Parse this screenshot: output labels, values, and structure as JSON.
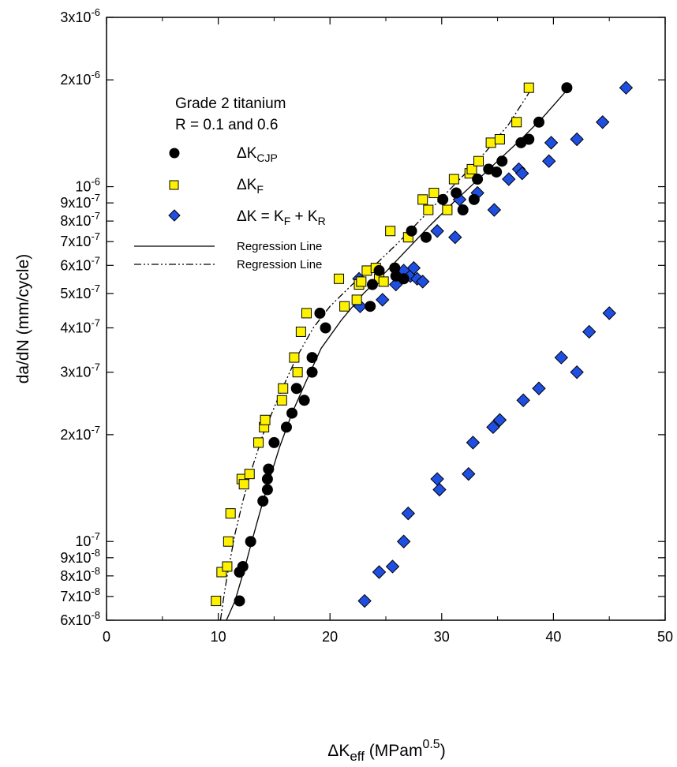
{
  "chart_data": {
    "type": "scatter",
    "xlabel": {
      "base": "ΔK",
      "sub": "eff",
      "rest": " (MPam",
      "sup": "0.5",
      "end": ")"
    },
    "ylabel": "da/dN  (mm/cycle)",
    "x_scale": "linear",
    "y_scale": "log",
    "xlim": [
      0,
      50
    ],
    "ylim": [
      6e-08,
      3e-06
    ],
    "x_ticks": [
      0,
      10,
      20,
      30,
      40,
      50
    ],
    "x_tick_labels": [
      "0",
      "10",
      "20",
      "30",
      "40",
      "50"
    ],
    "y_ticks": [
      {
        "value": 6e-08,
        "mant": "6x10",
        "exp": "-8"
      },
      {
        "value": 7e-08,
        "mant": "7x10",
        "exp": "-8"
      },
      {
        "value": 8e-08,
        "mant": "8x10",
        "exp": "-8"
      },
      {
        "value": 9e-08,
        "mant": "9x10",
        "exp": "-8"
      },
      {
        "value": 1e-07,
        "mant": "10",
        "exp": "-7"
      },
      {
        "value": 2e-07,
        "mant": "2x10",
        "exp": "-7"
      },
      {
        "value": 3e-07,
        "mant": "3x10",
        "exp": "-7"
      },
      {
        "value": 4e-07,
        "mant": "4x10",
        "exp": "-7"
      },
      {
        "value": 5e-07,
        "mant": "5x10",
        "exp": "-7"
      },
      {
        "value": 6e-07,
        "mant": "6x10",
        "exp": "-7"
      },
      {
        "value": 7e-07,
        "mant": "7x10",
        "exp": "-7"
      },
      {
        "value": 8e-07,
        "mant": "8x10",
        "exp": "-7"
      },
      {
        "value": 9e-07,
        "mant": "9x10",
        "exp": "-7"
      },
      {
        "value": 1e-06,
        "mant": "10",
        "exp": "-6"
      },
      {
        "value": 2e-06,
        "mant": "2x10",
        "exp": "-6"
      },
      {
        "value": 3e-06,
        "mant": "3x10",
        "exp": "-6"
      }
    ],
    "annotations": [
      "Grade 2 titanium",
      "R = 0.1 and 0.6"
    ],
    "legend_position": "top-left",
    "grid": false,
    "series": [
      {
        "name": {
          "base": "ΔK",
          "sub": "CJP"
        },
        "marker": "circle",
        "color": "#000000",
        "points": [
          [
            11.9,
            6.8e-08
          ],
          [
            11.9,
            8.2e-08
          ],
          [
            12.2,
            8.5e-08
          ],
          [
            12.9,
            1e-07
          ],
          [
            14.0,
            1.3e-07
          ],
          [
            14.4,
            1.4e-07
          ],
          [
            14.4,
            1.5e-07
          ],
          [
            14.5,
            1.6e-07
          ],
          [
            15.0,
            1.9e-07
          ],
          [
            16.1,
            2.1e-07
          ],
          [
            16.6,
            2.3e-07
          ],
          [
            17.0,
            2.7e-07
          ],
          [
            17.7,
            2.5e-07
          ],
          [
            18.4,
            3e-07
          ],
          [
            18.4,
            3.3e-07
          ],
          [
            19.1,
            4.4e-07
          ],
          [
            19.6,
            4e-07
          ],
          [
            23.6,
            4.6e-07
          ],
          [
            23.8,
            5.3e-07
          ],
          [
            24.4,
            5.8e-07
          ],
          [
            25.8,
            5.9e-07
          ],
          [
            25.9,
            5.6e-07
          ],
          [
            26.6,
            5.5e-07
          ],
          [
            27.3,
            7.5e-07
          ],
          [
            28.6,
            7.2e-07
          ],
          [
            30.1,
            9.2e-07
          ],
          [
            31.3,
            9.6e-07
          ],
          [
            31.9,
            8.6e-07
          ],
          [
            32.9,
            9.2e-07
          ],
          [
            33.2,
            1.05e-06
          ],
          [
            34.2,
            1.12e-06
          ],
          [
            34.9,
            1.1e-06
          ],
          [
            35.4,
            1.18e-06
          ],
          [
            37.1,
            1.33e-06
          ],
          [
            37.8,
            1.36e-06
          ],
          [
            38.7,
            1.52e-06
          ],
          [
            41.2,
            1.9e-06
          ]
        ]
      },
      {
        "name": {
          "base": "ΔK",
          "sub": "F"
        },
        "marker": "square",
        "color": "#FFF200",
        "points": [
          [
            9.8,
            6.8e-08
          ],
          [
            10.3,
            8.2e-08
          ],
          [
            10.8,
            8.5e-08
          ],
          [
            10.9,
            1e-07
          ],
          [
            11.1,
            1.2e-07
          ],
          [
            12.1,
            1.5e-07
          ],
          [
            12.3,
            1.45e-07
          ],
          [
            12.8,
            1.55e-07
          ],
          [
            13.6,
            1.9e-07
          ],
          [
            14.1,
            2.1e-07
          ],
          [
            14.2,
            2.2e-07
          ],
          [
            15.7,
            2.5e-07
          ],
          [
            15.8,
            2.7e-07
          ],
          [
            16.8,
            3.3e-07
          ],
          [
            17.1,
            3e-07
          ],
          [
            17.4,
            3.9e-07
          ],
          [
            17.9,
            4.4e-07
          ],
          [
            20.8,
            5.5e-07
          ],
          [
            21.3,
            4.6e-07
          ],
          [
            22.4,
            4.8e-07
          ],
          [
            22.6,
            5.3e-07
          ],
          [
            22.8,
            5.4e-07
          ],
          [
            23.3,
            5.8e-07
          ],
          [
            24.1,
            5.9e-07
          ],
          [
            24.4,
            5.5e-07
          ],
          [
            24.8,
            5.4e-07
          ],
          [
            25.4,
            7.5e-07
          ],
          [
            27.0,
            7.2e-07
          ],
          [
            28.3,
            9.2e-07
          ],
          [
            28.8,
            8.6e-07
          ],
          [
            29.3,
            9.6e-07
          ],
          [
            30.5,
            8.6e-07
          ],
          [
            31.1,
            1.05e-06
          ],
          [
            32.5,
            1.09e-06
          ],
          [
            32.7,
            1.12e-06
          ],
          [
            33.3,
            1.18e-06
          ],
          [
            34.4,
            1.33e-06
          ],
          [
            35.2,
            1.36e-06
          ],
          [
            36.7,
            1.52e-06
          ],
          [
            37.8,
            1.9e-06
          ]
        ]
      },
      {
        "name": {
          "base": "ΔK = K",
          "sub": "F",
          "mid": " + K",
          "sub2": "R"
        },
        "marker": "diamond",
        "color": "#1F4FE0",
        "points": [
          [
            22.6,
            5.5e-07
          ],
          [
            22.7,
            4.6e-07
          ],
          [
            24.7,
            4.8e-07
          ],
          [
            25.9,
            5.3e-07
          ],
          [
            26.6,
            5.8e-07
          ],
          [
            27.2,
            5.6e-07
          ],
          [
            27.5,
            5.9e-07
          ],
          [
            27.8,
            5.5e-07
          ],
          [
            28.3,
            5.4e-07
          ],
          [
            29.6,
            7.5e-07
          ],
          [
            31.2,
            7.2e-07
          ],
          [
            31.6,
            9.2e-07
          ],
          [
            33.2,
            9.6e-07
          ],
          [
            34.7,
            8.6e-07
          ],
          [
            36.0,
            1.05e-06
          ],
          [
            36.9,
            1.12e-06
          ],
          [
            37.2,
            1.09e-06
          ],
          [
            39.6,
            1.18e-06
          ],
          [
            39.8,
            1.33e-06
          ],
          [
            42.1,
            1.36e-06
          ],
          [
            44.4,
            1.52e-06
          ],
          [
            46.5,
            1.9e-06
          ],
          [
            23.1,
            6.8e-08
          ],
          [
            24.4,
            8.2e-08
          ],
          [
            25.6,
            8.5e-08
          ],
          [
            26.6,
            1e-07
          ],
          [
            27.0,
            1.2e-07
          ],
          [
            29.6,
            1.5e-07
          ],
          [
            29.8,
            1.4e-07
          ],
          [
            32.4,
            1.55e-07
          ],
          [
            32.8,
            1.9e-07
          ],
          [
            34.6,
            2.1e-07
          ],
          [
            35.2,
            2.2e-07
          ],
          [
            37.3,
            2.5e-07
          ],
          [
            38.7,
            2.7e-07
          ],
          [
            40.7,
            3.3e-07
          ],
          [
            42.1,
            3e-07
          ],
          [
            43.2,
            3.9e-07
          ],
          [
            45.0,
            4.4e-07
          ]
        ]
      }
    ],
    "lines": [
      {
        "name": "Regression Line",
        "style": "solid",
        "points": [
          [
            10.2,
            5.5e-08
          ],
          [
            11.5,
            6.8e-08
          ],
          [
            12.4,
            8.5e-08
          ],
          [
            13.0,
            1e-07
          ],
          [
            13.7,
            1.2e-07
          ],
          [
            14.6,
            1.5e-07
          ],
          [
            15.5,
            1.85e-07
          ],
          [
            16.6,
            2.3e-07
          ],
          [
            17.8,
            2.8e-07
          ],
          [
            19.2,
            3.5e-07
          ],
          [
            21.0,
            4.2e-07
          ],
          [
            23.0,
            5e-07
          ],
          [
            25.0,
            5.75e-07
          ],
          [
            27.0,
            6.7e-07
          ],
          [
            29.0,
            7.8e-07
          ],
          [
            31.0,
            9e-07
          ],
          [
            33.0,
            1.03e-06
          ],
          [
            35.0,
            1.18e-06
          ],
          [
            37.0,
            1.35e-06
          ],
          [
            39.0,
            1.56e-06
          ],
          [
            41.0,
            1.84e-06
          ]
        ]
      },
      {
        "name": "Regression Line",
        "style": "dashdotdot",
        "points": [
          [
            10.2,
            6e-08
          ],
          [
            10.5,
            7e-08
          ],
          [
            10.8,
            8e-08
          ],
          [
            11.1,
            9e-08
          ],
          [
            11.5,
            1.05e-07
          ],
          [
            12.2,
            1.3e-07
          ],
          [
            13.0,
            1.6e-07
          ],
          [
            14.0,
            2e-07
          ],
          [
            15.5,
            2.6e-07
          ],
          [
            17.0,
            3.3e-07
          ],
          [
            18.5,
            4e-07
          ],
          [
            20.0,
            4.6e-07
          ],
          [
            22.0,
            5.3e-07
          ],
          [
            24.0,
            6e-07
          ],
          [
            26.0,
            6.9e-07
          ],
          [
            28.0,
            8e-07
          ],
          [
            30.0,
            9.3e-07
          ],
          [
            32.0,
            1.08e-06
          ],
          [
            34.0,
            1.26e-06
          ],
          [
            36.0,
            1.5e-06
          ],
          [
            38.0,
            1.88e-06
          ]
        ]
      }
    ]
  }
}
